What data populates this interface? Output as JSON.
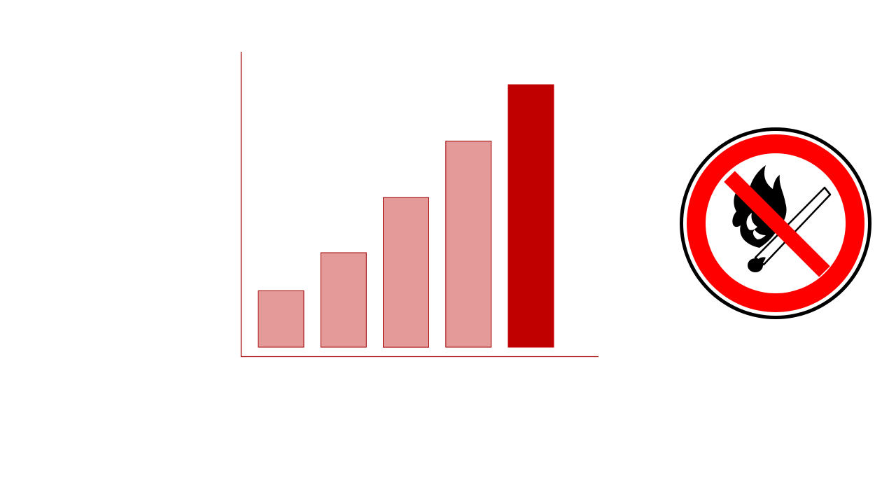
{
  "chart_data": {
    "type": "bar",
    "categories": [
      "",
      "",
      "",
      "",
      ""
    ],
    "values": [
      21.5,
      36,
      57,
      78.5,
      100
    ],
    "highlight_index": 4,
    "title": "",
    "xlabel": "",
    "ylabel": "",
    "ylim": [
      0,
      100
    ],
    "grid": false,
    "legend": "none",
    "colors": {
      "bar_fill": "#e59a9a",
      "bar_stroke": "#a00000",
      "highlight_fill": "#c00000",
      "axis": "#a00000"
    }
  },
  "sign": {
    "icon": "no-open-flame-prohibition-icon",
    "colors": {
      "ring": "#ff0000",
      "outline": "#000000",
      "background": "#ffffff",
      "symbol": "#000000"
    }
  }
}
